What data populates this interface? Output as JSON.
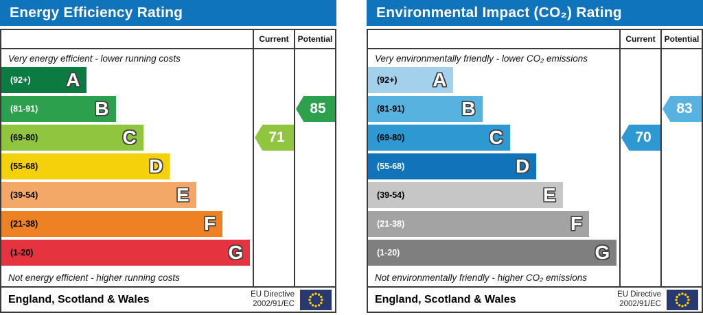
{
  "colors": {
    "header_bg": "#1074bc",
    "header_text": "#ffffff",
    "border": "#3a3a3a",
    "letter_outline": "#3f3f3f",
    "eu_flag_bg": "#283971",
    "eu_flag_star": "#ffcc00"
  },
  "chart_data": [
    {
      "type": "bar",
      "title": "Energy Efficiency Rating",
      "categories": [
        "A (92+)",
        "B (81-91)",
        "C (69-80)",
        "D (55-68)",
        "E (39-54)",
        "F (21-38)",
        "G (1-20)"
      ],
      "band_colors": [
        "#0c7b41",
        "#2ca04c",
        "#8fc63e",
        "#f5d10c",
        "#f3a867",
        "#ee8123",
        "#e5333f"
      ],
      "series": [
        {
          "name": "Current",
          "value": 71,
          "band": "C"
        },
        {
          "name": "Potential",
          "value": 85,
          "band": "B"
        }
      ],
      "scale": [
        1,
        100
      ],
      "top_note": "Very energy efficient - lower running costs",
      "bottom_note": "Not energy efficient - higher running costs"
    },
    {
      "type": "bar",
      "title": "Environmental Impact (CO₂) Rating",
      "categories": [
        "A (92+)",
        "B (81-91)",
        "C (69-80)",
        "D (55-68)",
        "E (39-54)",
        "F (21-38)",
        "G (1-20)"
      ],
      "band_colors": [
        "#a3d1eb",
        "#58b2e0",
        "#2e98d3",
        "#1173ba",
        "#c6c6c6",
        "#a3a3a3",
        "#7f7f7f"
      ],
      "series": [
        {
          "name": "Current",
          "value": 70,
          "band": "C"
        },
        {
          "name": "Potential",
          "value": 83,
          "band": "B"
        }
      ],
      "scale": [
        1,
        100
      ],
      "top_note": "Very environmentally friendly - lower CO₂ emissions",
      "bottom_note": "Not environmentally friendly - higher CO₂ emissions"
    }
  ],
  "panels": [
    {
      "title": "Energy Efficiency Rating",
      "col_current": "Current",
      "col_potential": "Potential",
      "top_caption": "Very energy efficient - lower running costs",
      "bottom_caption": "Not energy efficient - higher running costs",
      "bands": [
        {
          "letter": "A",
          "range": "(92+)",
          "color": "#0c7b41",
          "label_color": "#ffffff",
          "width_pct": 34
        },
        {
          "letter": "B",
          "range": "(81-91)",
          "color": "#2ca04c",
          "label_color": "#ffffff",
          "width_pct": 45.5
        },
        {
          "letter": "C",
          "range": "(69-80)",
          "color": "#8fc63e",
          "label_color": "#000000",
          "width_pct": 56.5
        },
        {
          "letter": "D",
          "range": "(55-68)",
          "color": "#f5d10c",
          "label_color": "#000000",
          "width_pct": 67
        },
        {
          "letter": "E",
          "range": "(39-54)",
          "color": "#f3a867",
          "label_color": "#000000",
          "width_pct": 77.5
        },
        {
          "letter": "F",
          "range": "(21-38)",
          "color": "#ee8123",
          "label_color": "#000000",
          "width_pct": 88
        },
        {
          "letter": "G",
          "range": "(1-20)",
          "color": "#e5333f",
          "label_color": "#000000",
          "width_pct": 99
        }
      ],
      "current": {
        "value": "71",
        "band_index": 2,
        "color": "#8fc63e"
      },
      "potential": {
        "value": "85",
        "band_index": 1,
        "color": "#2ca04c"
      },
      "footer": {
        "region": "England, Scotland & Wales",
        "directive_line1": "EU Directive",
        "directive_line2": "2002/91/EC"
      }
    },
    {
      "title": "Environmental Impact (CO₂) Rating",
      "col_current": "Current",
      "col_potential": "Potential",
      "top_caption": "Very environmentally friendly - lower CO₂ emissions",
      "bottom_caption": "Not environmentally friendly - higher CO₂ emissions",
      "bands": [
        {
          "letter": "A",
          "range": "(92+)",
          "color": "#a3d1eb",
          "label_color": "#000000",
          "width_pct": 34
        },
        {
          "letter": "B",
          "range": "(81-91)",
          "color": "#58b2e0",
          "label_color": "#000000",
          "width_pct": 45.5
        },
        {
          "letter": "C",
          "range": "(69-80)",
          "color": "#2e98d3",
          "label_color": "#000000",
          "width_pct": 56.5
        },
        {
          "letter": "D",
          "range": "(55-68)",
          "color": "#1173ba",
          "label_color": "#ffffff",
          "width_pct": 67
        },
        {
          "letter": "E",
          "range": "(39-54)",
          "color": "#c6c6c6",
          "label_color": "#000000",
          "width_pct": 77.5
        },
        {
          "letter": "F",
          "range": "(21-38)",
          "color": "#a3a3a3",
          "label_color": "#ffffff",
          "width_pct": 88
        },
        {
          "letter": "G",
          "range": "(1-20)",
          "color": "#7f7f7f",
          "label_color": "#ffffff",
          "width_pct": 99
        }
      ],
      "current": {
        "value": "70",
        "band_index": 2,
        "color": "#2e98d3"
      },
      "potential": {
        "value": "83",
        "band_index": 1,
        "color": "#58b2e0"
      },
      "footer": {
        "region": "England, Scotland & Wales",
        "directive_line1": "EU Directive",
        "directive_line2": "2002/91/EC"
      }
    }
  ]
}
